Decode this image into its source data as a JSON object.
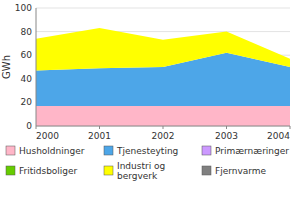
{
  "chart_data": {
    "type": "area",
    "stacked": true,
    "x": [
      2000,
      2001,
      2002,
      2003,
      2004
    ],
    "series": [
      {
        "name": "Husholdninger",
        "color": "#FFB6C8",
        "values": [
          17,
          17,
          17,
          17,
          17
        ]
      },
      {
        "name": "Tjenesteyting",
        "color": "#4da6e8",
        "values": [
          30,
          32,
          33,
          45,
          33
        ]
      },
      {
        "name": "Primærnæringer",
        "color": "#cc99ff",
        "values": [
          0,
          0,
          0,
          0,
          0
        ]
      },
      {
        "name": "Fritidsboliger",
        "color": "#66cc00",
        "values": [
          0,
          0,
          0,
          0,
          0
        ]
      },
      {
        "name": "Industri og\nbergverk",
        "color": "#ffff00",
        "values": [
          27,
          34,
          23,
          18,
          7
        ]
      },
      {
        "name": "Fjernvarme",
        "color": "#808080",
        "values": [
          0,
          0,
          0,
          0,
          0
        ]
      }
    ],
    "y_label": "GWh",
    "xlim": [
      2000,
      2004
    ],
    "xticks": [
      2000,
      2001,
      2002,
      2003,
      2004
    ],
    "ylim": [
      0,
      100
    ],
    "yticks": [
      0,
      20,
      40,
      60,
      80,
      100
    ],
    "grid": true,
    "legend": "bottom"
  }
}
